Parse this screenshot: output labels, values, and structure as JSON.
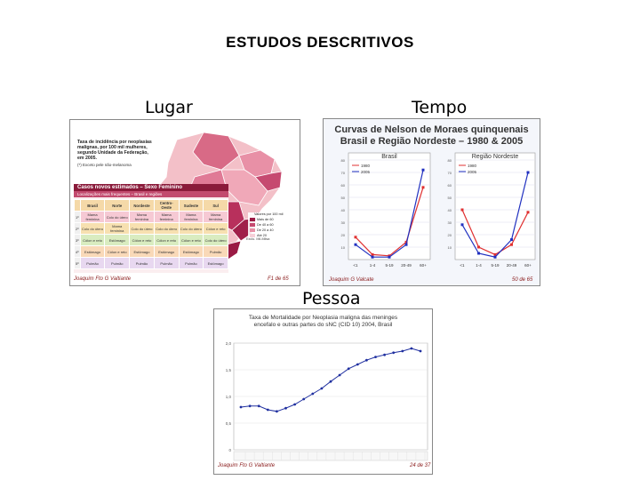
{
  "slide": {
    "title": "ESTUDOS DESCRITIVOS",
    "caption_left": "Lugar",
    "caption_right": "Tempo",
    "caption_bottom": "Pessoa"
  },
  "lugar": {
    "heading": "Taxa de incidência por neoplasias malignas, por 100 mil mulheres, segundo Unidade da Federação, em 2005.",
    "source": "(*) Exceto pele não-melanoma",
    "table_title": "Casos novos estimados – Sexo Feminino",
    "table_subtitle": "Localizações mais frequentes – Brasil e regiões",
    "columns": [
      "",
      "Brasil",
      "Norte",
      "Nordeste",
      "Centro-Oeste",
      "Sudeste",
      "Sul"
    ],
    "rows": [
      [
        "1º",
        "Mama feminina",
        "Colo do útero",
        "Mama feminina",
        "Mama feminina",
        "Mama feminina",
        "Mama feminina"
      ],
      [
        "2º",
        "Colo do útero",
        "Mama feminina",
        "Colo do útero",
        "Colo do útero",
        "Colo do útero",
        "Cólon e reto"
      ],
      [
        "3º",
        "Cólon e reto",
        "Estômago",
        "Cólon e reto",
        "Cólon e reto",
        "Cólon e reto",
        "Colo do útero"
      ],
      [
        "4º",
        "Estômago",
        "Cólon e reto",
        "Estômago",
        "Estômago",
        "Estômago",
        "Pulmão"
      ],
      [
        "5º",
        "Pulmão",
        "Pulmão",
        "Pulmão",
        "Pulmão",
        "Pulmão",
        "Estômago"
      ]
    ],
    "legend": [
      "Valores por 100 mil",
      "Mais de 60",
      "De 40 a 60",
      "De 20 a 40",
      "Até 20"
    ],
    "author": "Joaquim Fto G Valtiante",
    "footer_right": "F1 de 65",
    "map_note": "Exclu. Mil-Milsa"
  },
  "tempo": {
    "title_line1": "Curvas de Nelson de Moraes quinquenais",
    "title_line2": "Brasil e Região Nordeste – 1980 & 2005",
    "series_colors": {
      "y1980": "#e03030",
      "y2005": "#2030c0"
    },
    "author": "Joaquim G Valcate",
    "footer_right": "50 de 65"
  },
  "pessoa": {
    "title_line1": "Taxa de Mortalidade por Neoplasia maligna das meninges",
    "title_line2": "encefalo e outras partes do sNC (CID 10) 2004, Brasil",
    "series_color": "#2030a0",
    "author": "Joaquim Fto G Valtiante",
    "footer_right": "24 de 37"
  },
  "chart_data": [
    {
      "type": "line",
      "title": "Brasil",
      "categories": [
        "<1",
        "1-4",
        "5-19",
        "20-49",
        "60+"
      ],
      "series": [
        {
          "name": "1980",
          "values": [
            18,
            4,
            3,
            14,
            58
          ]
        },
        {
          "name": "2005",
          "values": [
            12,
            2,
            2,
            12,
            72
          ]
        }
      ],
      "yticks": [
        10,
        20,
        30,
        40,
        50,
        60,
        70,
        80
      ],
      "ylim": [
        0,
        80
      ]
    },
    {
      "type": "line",
      "title": "Região Nordeste",
      "categories": [
        "<1",
        "1-4",
        "5-19",
        "20-49",
        "60+"
      ],
      "series": [
        {
          "name": "1980",
          "values": [
            40,
            10,
            4,
            12,
            38
          ]
        },
        {
          "name": "2005",
          "values": [
            28,
            5,
            2,
            16,
            70
          ]
        }
      ],
      "yticks": [
        10,
        20,
        30,
        40,
        50,
        60,
        70,
        80
      ],
      "ylim": [
        0,
        80
      ]
    },
    {
      "type": "line",
      "series": [
        {
          "values": [
            0.8,
            0.82,
            0.82,
            0.75,
            0.72,
            0.78,
            0.85,
            0.95,
            1.05,
            1.15,
            1.28,
            1.4,
            1.52,
            1.6,
            1.68,
            1.74,
            1.78,
            1.82,
            1.85,
            1.9,
            1.85
          ]
        }
      ],
      "yticks": [
        "0",
        "0,5",
        "1,0",
        "1,5",
        "2,0"
      ],
      "ylim": [
        0,
        2.0
      ]
    }
  ]
}
